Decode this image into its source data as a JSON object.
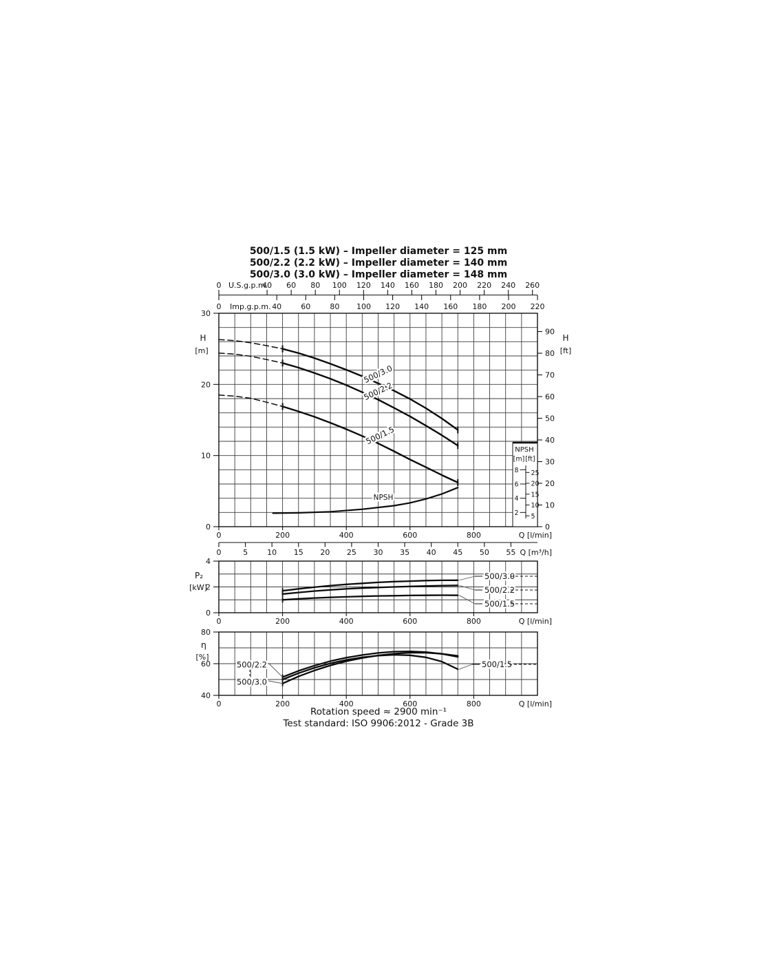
{
  "title_lines": [
    "500/1.5 (1.5 kW) – Impeller diameter = 125 mm",
    "500/2.2 (2.2 kW) – Impeller diameter = 140 mm",
    "500/3.0 (3.0 kW) – Impeller diameter = 148 mm"
  ],
  "footer": {
    "rotation_speed": "Rotation speed ≈ 2900 min⁻¹",
    "test_standard": "Test standard: ISO 9906:2012 - Grade 3B"
  },
  "chart_data": [
    {
      "id": "head",
      "type": "line",
      "x_axes": {
        "lmin": {
          "label": "Q [l/min]",
          "min": 0,
          "max": 1000,
          "ticks": [
            0,
            200,
            400,
            600,
            800
          ],
          "grid_step": 50
        },
        "usgpm": {
          "label": "U.S.g.p.m.",
          "ticks": [
            0,
            40,
            60,
            80,
            100,
            120,
            140,
            160,
            180,
            200,
            220,
            240,
            260
          ]
        },
        "impgpm": {
          "label": "Imp.g.p.m.",
          "ticks": [
            0,
            40,
            60,
            80,
            100,
            120,
            140,
            160,
            180,
            200,
            220
          ]
        },
        "m3h": {
          "label": "Q [m³/h]",
          "ticks": [
            0,
            5,
            10,
            15,
            20,
            25,
            30,
            35,
            40,
            45,
            50,
            55
          ]
        }
      },
      "y_axis_left": {
        "label_1": "H",
        "label_2": "[m]",
        "min": 0,
        "max": 30,
        "ticks": [
          0,
          10,
          20,
          30
        ],
        "grid_step": 2
      },
      "y_axis_right": {
        "label_1": "H",
        "label_2": "[ft]",
        "ticks": [
          0,
          10,
          20,
          30,
          40,
          50,
          60,
          70,
          80,
          90
        ]
      },
      "npsh_inset": {
        "title": "NPSH",
        "col_labels": [
          "[m]",
          "[ft]"
        ],
        "m_ticks": [
          2,
          4,
          6,
          8
        ],
        "ft_ticks": [
          5,
          10,
          15,
          20,
          25
        ]
      },
      "series": [
        {
          "name": "500/3.0",
          "solid_from": 200,
          "points": [
            [
              0,
              26.3
            ],
            [
              50,
              26.15
            ],
            [
              100,
              25.85
            ],
            [
              150,
              25.45
            ],
            [
              200,
              25.0
            ],
            [
              250,
              24.4
            ],
            [
              300,
              23.7
            ],
            [
              350,
              22.9
            ],
            [
              400,
              22.05
            ],
            [
              450,
              21.15
            ],
            [
              500,
              20.15
            ],
            [
              550,
              19.1
            ],
            [
              600,
              17.95
            ],
            [
              650,
              16.65
            ],
            [
              700,
              15.2
            ],
            [
              750,
              13.6
            ]
          ]
        },
        {
          "name": "500/2.2",
          "solid_from": 200,
          "points": [
            [
              0,
              24.4
            ],
            [
              50,
              24.25
            ],
            [
              100,
              23.95
            ],
            [
              150,
              23.5
            ],
            [
              200,
              23.0
            ],
            [
              250,
              22.35
            ],
            [
              300,
              21.6
            ],
            [
              350,
              20.8
            ],
            [
              400,
              19.9
            ],
            [
              450,
              18.9
            ],
            [
              500,
              17.85
            ],
            [
              550,
              16.7
            ],
            [
              600,
              15.5
            ],
            [
              650,
              14.2
            ],
            [
              700,
              12.85
            ],
            [
              750,
              11.4
            ]
          ]
        },
        {
          "name": "500/1.5",
          "solid_from": 200,
          "points": [
            [
              0,
              18.5
            ],
            [
              50,
              18.35
            ],
            [
              100,
              18.05
            ],
            [
              150,
              17.5
            ],
            [
              200,
              16.9
            ],
            [
              250,
              16.2
            ],
            [
              300,
              15.45
            ],
            [
              350,
              14.6
            ],
            [
              400,
              13.7
            ],
            [
              450,
              12.75
            ],
            [
              500,
              11.7
            ],
            [
              550,
              10.6
            ],
            [
              600,
              9.45
            ],
            [
              650,
              8.35
            ],
            [
              700,
              7.25
            ],
            [
              750,
              6.2
            ]
          ]
        },
        {
          "name": "NPSH",
          "points": [
            [
              170,
              1.9
            ],
            [
              250,
              1.95
            ],
            [
              350,
              2.1
            ],
            [
              450,
              2.45
            ],
            [
              550,
              2.95
            ],
            [
              600,
              3.35
            ],
            [
              650,
              3.9
            ],
            [
              700,
              4.6
            ],
            [
              750,
              5.5
            ]
          ]
        }
      ]
    },
    {
      "id": "power",
      "type": "line",
      "x_axis": {
        "label": "Q [l/min]",
        "min": 0,
        "max": 1000,
        "ticks": [
          0,
          200,
          400,
          600,
          800
        ],
        "grid_step": 50
      },
      "y_axis_left": {
        "label_1": "P₂",
        "label_2": "[kW]",
        "min": 0,
        "max": 4,
        "ticks": [
          0,
          2,
          4
        ],
        "grid_step": 1
      },
      "series": [
        {
          "name": "500/3.0",
          "points": [
            [
              200,
              1.7
            ],
            [
              250,
              1.85
            ],
            [
              300,
              1.98
            ],
            [
              350,
              2.1
            ],
            [
              400,
              2.2
            ],
            [
              450,
              2.28
            ],
            [
              500,
              2.35
            ],
            [
              550,
              2.41
            ],
            [
              600,
              2.45
            ],
            [
              650,
              2.49
            ],
            [
              700,
              2.51
            ],
            [
              750,
              2.52
            ]
          ]
        },
        {
          "name": "500/2.2",
          "points": [
            [
              200,
              1.45
            ],
            [
              250,
              1.57
            ],
            [
              300,
              1.68
            ],
            [
              350,
              1.77
            ],
            [
              400,
              1.85
            ],
            [
              450,
              1.91
            ],
            [
              500,
              1.96
            ],
            [
              550,
              2.0
            ],
            [
              600,
              2.04
            ],
            [
              650,
              2.07
            ],
            [
              700,
              2.1
            ],
            [
              750,
              2.12
            ]
          ]
        },
        {
          "name": "500/1.5",
          "points": [
            [
              200,
              1.0
            ],
            [
              250,
              1.08
            ],
            [
              300,
              1.14
            ],
            [
              350,
              1.19
            ],
            [
              400,
              1.23
            ],
            [
              450,
              1.27
            ],
            [
              500,
              1.3
            ],
            [
              550,
              1.32
            ],
            [
              600,
              1.34
            ],
            [
              650,
              1.35
            ],
            [
              700,
              1.36
            ],
            [
              750,
              1.35
            ]
          ]
        }
      ]
    },
    {
      "id": "efficiency",
      "type": "line",
      "x_axis": {
        "label": "Q [l/min]",
        "min": 0,
        "max": 1000,
        "ticks": [
          0,
          200,
          400,
          600,
          800
        ],
        "grid_step": 50
      },
      "y_axis_left": {
        "label_1": "η",
        "label_2": "[%]",
        "min": 40,
        "max": 80,
        "ticks": [
          40,
          60,
          80
        ],
        "grid_step": 10
      },
      "series": [
        {
          "name": "500/2.2",
          "points": [
            [
              200,
              51.5
            ],
            [
              250,
              55.5
            ],
            [
              300,
              58.8
            ],
            [
              350,
              61.6
            ],
            [
              400,
              63.8
            ],
            [
              450,
              65.5
            ],
            [
              500,
              66.8
            ],
            [
              550,
              67.6
            ],
            [
              600,
              67.8
            ],
            [
              650,
              67.3
            ],
            [
              700,
              66.2
            ],
            [
              750,
              64.3
            ]
          ]
        },
        {
          "name": "500/3.0",
          "points": [
            [
              200,
              47.5
            ],
            [
              250,
              52.0
            ],
            [
              300,
              55.7
            ],
            [
              350,
              58.9
            ],
            [
              400,
              61.5
            ],
            [
              450,
              63.6
            ],
            [
              500,
              65.2
            ],
            [
              550,
              66.3
            ],
            [
              600,
              66.9
            ],
            [
              650,
              66.9
            ],
            [
              700,
              66.2
            ],
            [
              750,
              64.9
            ]
          ]
        },
        {
          "name": "500/1.5",
          "points": [
            [
              200,
              50.0
            ],
            [
              250,
              54.0
            ],
            [
              300,
              57.4
            ],
            [
              350,
              60.2
            ],
            [
              400,
              62.4
            ],
            [
              450,
              64.0
            ],
            [
              500,
              65.1
            ],
            [
              550,
              65.6
            ],
            [
              600,
              65.3
            ],
            [
              650,
              64.0
            ],
            [
              700,
              61.3
            ],
            [
              750,
              56.5
            ]
          ]
        }
      ]
    }
  ]
}
